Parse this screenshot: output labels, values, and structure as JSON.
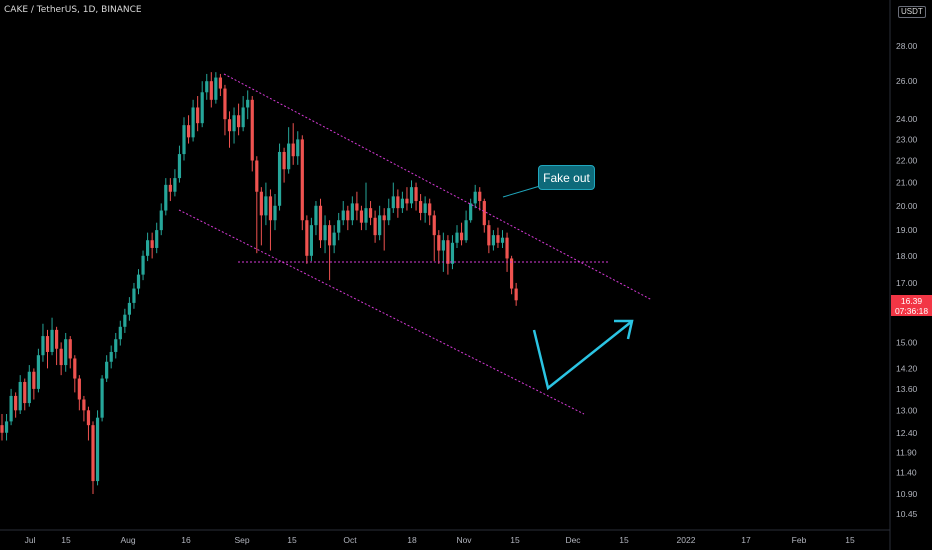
{
  "header": {
    "symbol": "CAKE / TetherUS, 1D, BINANCE",
    "currency": "USDT"
  },
  "last_price": {
    "value": "16.39",
    "countdown": "07:36:18",
    "color": "#f23645"
  },
  "annotation": {
    "text": "Fake out"
  },
  "colors": {
    "up": "#26a69a",
    "down": "#ef5350",
    "channel": "#d63ad6",
    "arrow": "#2bc4e3",
    "callout_bg": "#0e6a7a"
  },
  "chart_data": {
    "type": "candlestick",
    "yaxis": {
      "scale": "log",
      "ticks": [
        "28.00",
        "26.00",
        "24.00",
        "23.00",
        "22.00",
        "21.00",
        "20.00",
        "19.00",
        "18.00",
        "17.00",
        "16.00",
        "15.00",
        "14.20",
        "13.60",
        "13.00",
        "12.40",
        "11.90",
        "11.40",
        "10.90",
        "10.45"
      ]
    },
    "xaxis": {
      "ticks": [
        "Jul",
        "15",
        "Aug",
        "16",
        "Sep",
        "15",
        "Oct",
        "18",
        "Nov",
        "15",
        "Dec",
        "15",
        "2022",
        "17",
        "Feb",
        "15"
      ]
    },
    "candles": [
      [
        12.6,
        12.4,
        12.9,
        12.2
      ],
      [
        12.4,
        12.7,
        12.9,
        12.2
      ],
      [
        12.7,
        13.4,
        13.6,
        12.6
      ],
      [
        13.4,
        13.0,
        13.5,
        12.8
      ],
      [
        13.0,
        13.8,
        14.0,
        12.9
      ],
      [
        13.8,
        13.2,
        13.9,
        13.0
      ],
      [
        13.2,
        14.1,
        14.3,
        13.1
      ],
      [
        14.1,
        13.6,
        14.2,
        13.3
      ],
      [
        13.6,
        14.6,
        14.8,
        13.5
      ],
      [
        14.6,
        15.2,
        15.6,
        14.4
      ],
      [
        15.2,
        14.7,
        15.4,
        14.2
      ],
      [
        14.7,
        15.4,
        15.8,
        14.6
      ],
      [
        15.4,
        14.8,
        15.5,
        14.3
      ],
      [
        14.8,
        14.3,
        15.0,
        14.0
      ],
      [
        14.3,
        15.1,
        15.3,
        14.1
      ],
      [
        15.1,
        14.5,
        15.2,
        14.2
      ],
      [
        14.5,
        13.9,
        14.6,
        13.5
      ],
      [
        13.9,
        13.3,
        14.0,
        13.0
      ],
      [
        13.3,
        13.0,
        13.4,
        12.7
      ],
      [
        13.0,
        12.6,
        13.1,
        12.2
      ],
      [
        12.6,
        11.2,
        12.7,
        10.9
      ],
      [
        11.2,
        12.8,
        13.0,
        11.1
      ],
      [
        12.8,
        13.9,
        14.0,
        12.7
      ],
      [
        13.9,
        14.4,
        14.6,
        13.8
      ],
      [
        14.4,
        14.7,
        14.9,
        14.2
      ],
      [
        14.7,
        15.1,
        15.3,
        14.5
      ],
      [
        15.1,
        15.5,
        15.7,
        14.9
      ],
      [
        15.5,
        15.9,
        16.1,
        15.3
      ],
      [
        15.9,
        16.3,
        16.5,
        15.7
      ],
      [
        16.3,
        16.8,
        17.0,
        16.1
      ],
      [
        16.8,
        17.3,
        17.5,
        16.6
      ],
      [
        17.3,
        18.0,
        18.2,
        17.1
      ],
      [
        18.0,
        18.6,
        18.9,
        17.8
      ],
      [
        18.6,
        18.3,
        18.9,
        17.9
      ],
      [
        18.3,
        19.0,
        19.3,
        18.1
      ],
      [
        19.0,
        19.8,
        20.1,
        18.8
      ],
      [
        19.8,
        20.9,
        21.2,
        19.6
      ],
      [
        20.9,
        20.6,
        21.2,
        20.2
      ],
      [
        20.6,
        21.2,
        21.6,
        20.4
      ],
      [
        21.2,
        22.3,
        22.7,
        21.0
      ],
      [
        22.3,
        23.7,
        24.1,
        22.0
      ],
      [
        23.7,
        23.1,
        24.2,
        22.8
      ],
      [
        23.1,
        24.6,
        25.0,
        22.9
      ],
      [
        24.6,
        23.8,
        25.2,
        23.4
      ],
      [
        23.8,
        25.4,
        26.0,
        23.6
      ],
      [
        25.4,
        26.0,
        26.4,
        25.0
      ],
      [
        26.0,
        25.0,
        26.5,
        24.6
      ],
      [
        25.0,
        26.2,
        26.5,
        24.8
      ],
      [
        26.2,
        25.6,
        26.4,
        25.2
      ],
      [
        25.6,
        24.0,
        25.8,
        23.2
      ],
      [
        24.0,
        23.4,
        24.4,
        22.6
      ],
      [
        23.4,
        24.2,
        24.6,
        22.8
      ],
      [
        24.2,
        23.6,
        24.8,
        23.2
      ],
      [
        23.6,
        24.6,
        25.2,
        23.4
      ],
      [
        24.6,
        25.0,
        25.5,
        24.0
      ],
      [
        25.0,
        22.0,
        25.2,
        21.5
      ],
      [
        22.0,
        20.6,
        22.2,
        18.1
      ],
      [
        20.6,
        19.6,
        20.8,
        18.4
      ],
      [
        19.6,
        20.4,
        21.0,
        19.2
      ],
      [
        20.4,
        19.4,
        20.7,
        18.2
      ],
      [
        19.4,
        20.0,
        20.5,
        19.0
      ],
      [
        20.0,
        22.4,
        22.8,
        19.8
      ],
      [
        22.4,
        21.6,
        22.6,
        21.0
      ],
      [
        21.6,
        22.8,
        23.6,
        21.4
      ],
      [
        22.8,
        22.2,
        23.8,
        21.8
      ],
      [
        22.2,
        23.0,
        23.4,
        21.8
      ],
      [
        23.0,
        19.4,
        23.2,
        19.0
      ],
      [
        19.4,
        18.0,
        19.6,
        17.7
      ],
      [
        18.0,
        19.2,
        19.5,
        17.8
      ],
      [
        19.2,
        20.0,
        20.2,
        18.8
      ],
      [
        20.0,
        18.6,
        20.3,
        18.3
      ],
      [
        18.6,
        19.2,
        19.6,
        18.1
      ],
      [
        19.2,
        18.4,
        19.4,
        17.1
      ],
      [
        18.4,
        18.9,
        19.2,
        18.1
      ],
      [
        18.9,
        19.4,
        19.7,
        18.6
      ],
      [
        19.4,
        19.8,
        20.2,
        19.2
      ],
      [
        19.8,
        19.4,
        20.0,
        19.0
      ],
      [
        19.4,
        20.1,
        20.4,
        19.2
      ],
      [
        20.1,
        19.8,
        20.6,
        19.4
      ],
      [
        19.8,
        19.3,
        20.0,
        19.0
      ],
      [
        19.3,
        19.9,
        21.0,
        19.0
      ],
      [
        19.9,
        19.5,
        20.2,
        19.2
      ],
      [
        19.5,
        18.8,
        19.8,
        18.5
      ],
      [
        18.8,
        19.6,
        20.0,
        18.6
      ],
      [
        19.6,
        19.4,
        19.9,
        18.2
      ],
      [
        19.4,
        19.9,
        20.3,
        19.2
      ],
      [
        19.9,
        20.4,
        21.0,
        19.7
      ],
      [
        20.4,
        19.9,
        20.7,
        19.5
      ],
      [
        19.9,
        20.3,
        20.6,
        19.7
      ],
      [
        20.3,
        20.1,
        20.8,
        19.8
      ],
      [
        20.1,
        20.8,
        21.1,
        19.9
      ],
      [
        20.8,
        20.2,
        21.0,
        19.8
      ],
      [
        20.2,
        19.7,
        20.5,
        19.4
      ],
      [
        19.7,
        20.1,
        20.4,
        19.3
      ],
      [
        20.1,
        19.6,
        20.3,
        19.2
      ],
      [
        19.6,
        18.8,
        19.8,
        17.8
      ],
      [
        18.8,
        18.2,
        19.0,
        17.7
      ],
      [
        18.2,
        18.6,
        18.9,
        17.4
      ],
      [
        18.6,
        17.7,
        18.8,
        17.3
      ],
      [
        17.7,
        18.5,
        18.8,
        17.5
      ],
      [
        18.5,
        18.9,
        19.2,
        18.3
      ],
      [
        18.9,
        18.6,
        19.3,
        18.4
      ],
      [
        18.6,
        19.4,
        19.8,
        18.5
      ],
      [
        19.4,
        20.1,
        20.3,
        19.3
      ],
      [
        20.1,
        20.6,
        20.9,
        19.9
      ],
      [
        20.6,
        20.2,
        20.8,
        19.8
      ],
      [
        20.2,
        19.2,
        20.3,
        18.9
      ],
      [
        19.2,
        18.4,
        19.4,
        18.1
      ],
      [
        18.4,
        18.8,
        19.0,
        18.2
      ],
      [
        18.8,
        18.5,
        19.1,
        18.3
      ],
      [
        18.5,
        18.7,
        19.0,
        18.3
      ],
      [
        18.7,
        17.9,
        18.9,
        17.4
      ],
      [
        17.9,
        16.8,
        18.0,
        16.6
      ],
      [
        16.8,
        16.39,
        17.0,
        16.2
      ]
    ]
  }
}
